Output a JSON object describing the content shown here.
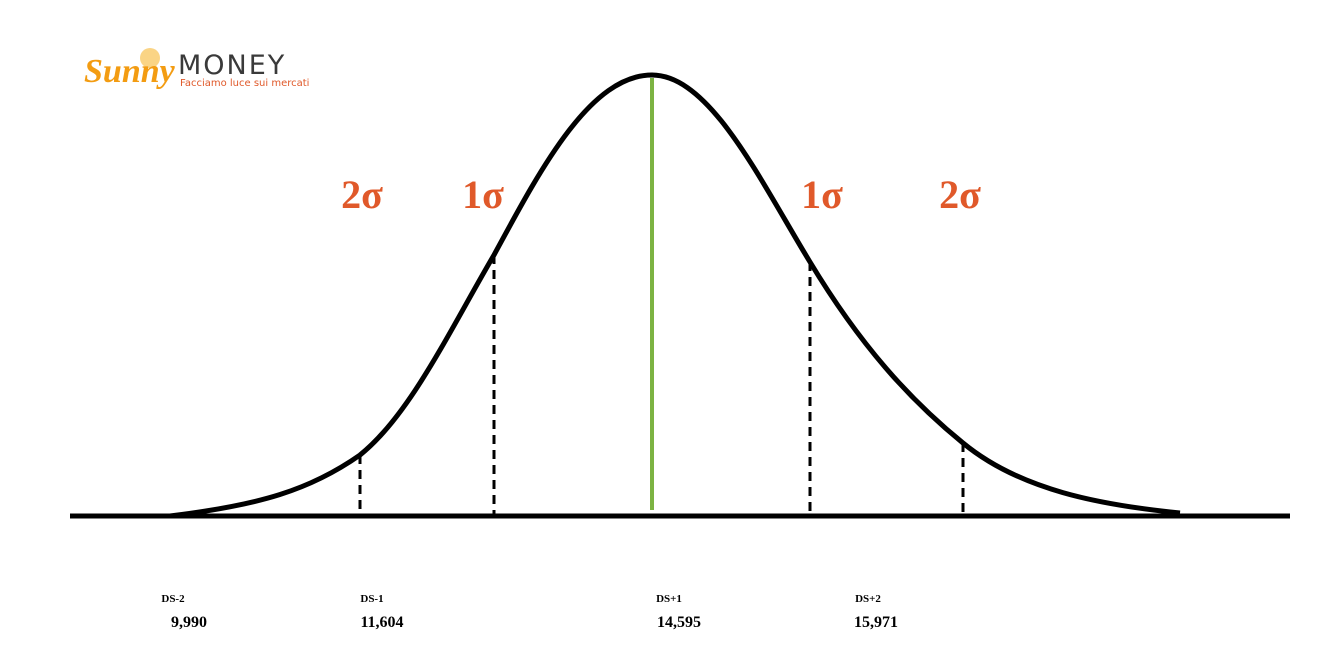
{
  "logo": {
    "brand": "Sunny",
    "name": "MONEY",
    "tagline": "Facciamo luce sui mercati"
  },
  "sigma_labels": [
    "2σ",
    "1σ",
    "1σ",
    "2σ"
  ],
  "levels": [
    {
      "label": "DS-2",
      "value": "9,990"
    },
    {
      "label": "DS-1",
      "value": "11,604"
    },
    {
      "label": "DS+1",
      "value": "14,595"
    },
    {
      "label": "DS+2",
      "value": "15,971"
    }
  ]
}
